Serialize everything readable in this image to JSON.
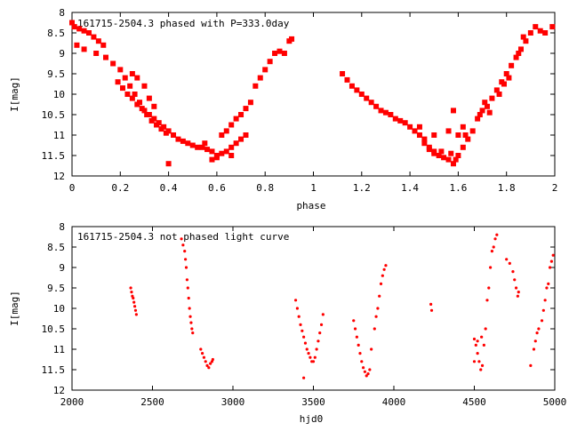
{
  "colors": {
    "points": "#ff0000",
    "axis": "#000000",
    "background": "#ffffff"
  },
  "chart_data": [
    {
      "type": "scatter",
      "title": "161715-2504.3 phased with P=333.0day",
      "xlabel": "phase",
      "ylabel": "I[mag]",
      "xlim": [
        0,
        2
      ],
      "ylim": [
        12,
        8
      ],
      "y_inverted": true,
      "grid": false,
      "legend": "none",
      "marker": "cross",
      "xticks": [
        "0",
        "0.2",
        "0.4",
        "0.6",
        "0.8",
        "1",
        "1.2",
        "1.4",
        "1.6",
        "1.8",
        "2"
      ],
      "yticks": [
        "8",
        "8.5",
        "9",
        "9.5",
        "10",
        "10.5",
        "11",
        "11.5",
        "12"
      ],
      "series": [
        {
          "values": [
            [
              0.0,
              8.25
            ],
            [
              0.01,
              8.35
            ],
            [
              0.03,
              8.4
            ],
            [
              0.05,
              8.45
            ],
            [
              0.07,
              8.5
            ],
            [
              0.09,
              8.6
            ],
            [
              0.11,
              8.7
            ],
            [
              0.13,
              8.8
            ],
            [
              0.02,
              8.8
            ],
            [
              0.05,
              8.9
            ],
            [
              0.1,
              9.0
            ],
            [
              0.14,
              9.1
            ],
            [
              0.17,
              9.25
            ],
            [
              0.2,
              9.4
            ],
            [
              0.22,
              9.6
            ],
            [
              0.24,
              9.8
            ],
            [
              0.26,
              10.0
            ],
            [
              0.28,
              10.2
            ],
            [
              0.3,
              10.4
            ],
            [
              0.32,
              10.5
            ],
            [
              0.34,
              10.6
            ],
            [
              0.36,
              10.7
            ],
            [
              0.38,
              10.8
            ],
            [
              0.4,
              10.9
            ],
            [
              0.42,
              11.0
            ],
            [
              0.44,
              11.1
            ],
            [
              0.46,
              11.15
            ],
            [
              0.19,
              9.7
            ],
            [
              0.21,
              9.85
            ],
            [
              0.23,
              10.0
            ],
            [
              0.25,
              10.1
            ],
            [
              0.27,
              10.25
            ],
            [
              0.29,
              10.35
            ],
            [
              0.31,
              10.5
            ],
            [
              0.33,
              10.65
            ],
            [
              0.35,
              10.75
            ],
            [
              0.37,
              10.85
            ],
            [
              0.39,
              10.95
            ],
            [
              0.25,
              9.5
            ],
            [
              0.27,
              9.6
            ],
            [
              0.3,
              9.8
            ],
            [
              0.32,
              10.1
            ],
            [
              0.34,
              10.3
            ],
            [
              0.48,
              11.2
            ],
            [
              0.5,
              11.25
            ],
            [
              0.52,
              11.3
            ],
            [
              0.54,
              11.3
            ],
            [
              0.56,
              11.35
            ],
            [
              0.58,
              11.4
            ],
            [
              0.6,
              11.5
            ],
            [
              0.62,
              11.45
            ],
            [
              0.64,
              11.4
            ],
            [
              0.66,
              11.3
            ],
            [
              0.68,
              11.2
            ],
            [
              0.7,
              11.1
            ],
            [
              0.72,
              11.0
            ],
            [
              0.58,
              11.6
            ],
            [
              0.6,
              11.55
            ],
            [
              0.55,
              11.2
            ],
            [
              0.62,
              11.0
            ],
            [
              0.66,
              11.5
            ],
            [
              0.64,
              10.9
            ],
            [
              0.66,
              10.75
            ],
            [
              0.68,
              10.6
            ],
            [
              0.7,
              10.5
            ],
            [
              0.72,
              10.35
            ],
            [
              0.74,
              10.2
            ],
            [
              0.76,
              9.8
            ],
            [
              0.78,
              9.6
            ],
            [
              0.8,
              9.4
            ],
            [
              0.82,
              9.2
            ],
            [
              0.84,
              9.0
            ],
            [
              0.86,
              8.95
            ],
            [
              0.88,
              9.0
            ],
            [
              0.9,
              8.7
            ],
            [
              0.91,
              8.65
            ],
            [
              0.4,
              11.7
            ],
            [
              1.12,
              9.5
            ],
            [
              1.14,
              9.65
            ],
            [
              1.16,
              9.8
            ],
            [
              1.18,
              9.9
            ],
            [
              1.2,
              10.0
            ],
            [
              1.22,
              10.1
            ],
            [
              1.24,
              10.2
            ],
            [
              1.26,
              10.3
            ],
            [
              1.28,
              10.4
            ],
            [
              1.3,
              10.45
            ],
            [
              1.32,
              10.5
            ],
            [
              1.34,
              10.6
            ],
            [
              1.36,
              10.65
            ],
            [
              1.38,
              10.7
            ],
            [
              1.4,
              10.8
            ],
            [
              1.42,
              10.9
            ],
            [
              1.44,
              11.0
            ],
            [
              1.46,
              11.1
            ],
            [
              1.48,
              11.3
            ],
            [
              1.5,
              11.45
            ],
            [
              1.52,
              11.5
            ],
            [
              1.54,
              11.55
            ],
            [
              1.56,
              11.6
            ],
            [
              1.58,
              11.7
            ],
            [
              1.6,
              11.5
            ],
            [
              1.62,
              11.3
            ],
            [
              1.64,
              11.1
            ],
            [
              1.46,
              11.2
            ],
            [
              1.48,
              11.35
            ],
            [
              1.5,
              11.4
            ],
            [
              1.53,
              11.4
            ],
            [
              1.57,
              11.45
            ],
            [
              1.59,
              11.6
            ],
            [
              1.44,
              10.8
            ],
            [
              1.5,
              11.0
            ],
            [
              1.58,
              10.4
            ],
            [
              1.6,
              11.0
            ],
            [
              1.56,
              10.9
            ],
            [
              1.62,
              10.8
            ],
            [
              1.66,
              10.9
            ],
            [
              1.68,
              10.6
            ],
            [
              1.7,
              10.4
            ],
            [
              1.72,
              10.3
            ],
            [
              1.74,
              10.1
            ],
            [
              1.76,
              9.9
            ],
            [
              1.78,
              9.7
            ],
            [
              1.8,
              9.5
            ],
            [
              1.82,
              9.3
            ],
            [
              1.84,
              9.1
            ],
            [
              1.86,
              8.9
            ],
            [
              1.88,
              8.7
            ],
            [
              1.9,
              8.5
            ],
            [
              1.92,
              8.35
            ],
            [
              1.94,
              8.45
            ],
            [
              1.96,
              8.5
            ],
            [
              1.99,
              8.35
            ],
            [
              1.69,
              10.5
            ],
            [
              1.71,
              10.2
            ],
            [
              1.73,
              10.45
            ],
            [
              1.63,
              11.0
            ],
            [
              1.77,
              10.0
            ],
            [
              1.79,
              9.75
            ],
            [
              1.81,
              9.6
            ],
            [
              1.85,
              9.0
            ],
            [
              1.87,
              8.6
            ]
          ]
        }
      ]
    },
    {
      "type": "scatter",
      "title": "161715-2504.3 not phased light curve",
      "xlabel": "hjd0",
      "ylabel": "I[mag]",
      "xlim": [
        2000,
        5000
      ],
      "ylim": [
        12,
        8
      ],
      "y_inverted": true,
      "grid": false,
      "legend": "none",
      "marker": "dot",
      "xticks": [
        "2000",
        "2500",
        "3000",
        "3500",
        "4000",
        "4500",
        "5000"
      ],
      "yticks": [
        "8",
        "8.5",
        "9",
        "9.5",
        "10",
        "10.5",
        "11",
        "11.5",
        "12"
      ],
      "series": [
        {
          "values": [
            [
              2365,
              9.5
            ],
            [
              2370,
              9.6
            ],
            [
              2375,
              9.7
            ],
            [
              2380,
              9.75
            ],
            [
              2385,
              9.85
            ],
            [
              2390,
              9.95
            ],
            [
              2395,
              10.05
            ],
            [
              2400,
              10.15
            ],
            [
              2680,
              8.3
            ],
            [
              2690,
              8.45
            ],
            [
              2700,
              8.6
            ],
            [
              2705,
              8.8
            ],
            [
              2710,
              9.0
            ],
            [
              2715,
              9.3
            ],
            [
              2720,
              9.5
            ],
            [
              2725,
              9.75
            ],
            [
              2730,
              10.0
            ],
            [
              2735,
              10.2
            ],
            [
              2740,
              10.35
            ],
            [
              2745,
              10.5
            ],
            [
              2750,
              10.6
            ],
            [
              2800,
              11.0
            ],
            [
              2810,
              11.1
            ],
            [
              2820,
              11.2
            ],
            [
              2830,
              11.3
            ],
            [
              2840,
              11.4
            ],
            [
              2850,
              11.45
            ],
            [
              2860,
              11.35
            ],
            [
              2870,
              11.3
            ],
            [
              2875,
              11.25
            ],
            [
              3390,
              9.8
            ],
            [
              3400,
              10.0
            ],
            [
              3410,
              10.2
            ],
            [
              3420,
              10.4
            ],
            [
              3430,
              10.55
            ],
            [
              3440,
              10.7
            ],
            [
              3450,
              10.85
            ],
            [
              3460,
              11.0
            ],
            [
              3470,
              11.1
            ],
            [
              3480,
              11.2
            ],
            [
              3490,
              11.3
            ],
            [
              3500,
              11.3
            ],
            [
              3510,
              11.2
            ],
            [
              3520,
              11.0
            ],
            [
              3530,
              10.8
            ],
            [
              3540,
              10.6
            ],
            [
              3550,
              10.4
            ],
            [
              3560,
              10.15
            ],
            [
              3440,
              11.7
            ],
            [
              3750,
              10.3
            ],
            [
              3760,
              10.5
            ],
            [
              3770,
              10.7
            ],
            [
              3780,
              10.9
            ],
            [
              3790,
              11.1
            ],
            [
              3800,
              11.3
            ],
            [
              3810,
              11.45
            ],
            [
              3820,
              11.55
            ],
            [
              3830,
              11.65
            ],
            [
              3840,
              11.6
            ],
            [
              3850,
              11.5
            ],
            [
              3860,
              11.0
            ],
            [
              3880,
              10.5
            ],
            [
              3890,
              10.2
            ],
            [
              3900,
              10.0
            ],
            [
              3910,
              9.7
            ],
            [
              3920,
              9.4
            ],
            [
              3930,
              9.2
            ],
            [
              3940,
              9.05
            ],
            [
              3950,
              8.95
            ],
            [
              4230,
              9.9
            ],
            [
              4235,
              10.05
            ],
            [
              4500,
              10.75
            ],
            [
              4510,
              10.9
            ],
            [
              4520,
              11.1
            ],
            [
              4530,
              11.3
            ],
            [
              4540,
              11.5
            ],
            [
              4550,
              11.4
            ],
            [
              4560,
              10.9
            ],
            [
              4570,
              10.5
            ],
            [
              4580,
              9.8
            ],
            [
              4590,
              9.5
            ],
            [
              4600,
              9.0
            ],
            [
              4610,
              8.6
            ],
            [
              4620,
              8.5
            ],
            [
              4630,
              8.3
            ],
            [
              4640,
              8.2
            ],
            [
              4500,
              11.3
            ],
            [
              4520,
              10.8
            ],
            [
              4545,
              10.7
            ],
            [
              4700,
              8.8
            ],
            [
              4720,
              8.9
            ],
            [
              4740,
              9.1
            ],
            [
              4750,
              9.3
            ],
            [
              4760,
              9.5
            ],
            [
              4770,
              9.7
            ],
            [
              4775,
              9.6
            ],
            [
              4850,
              11.4
            ],
            [
              4870,
              11.0
            ],
            [
              4880,
              10.8
            ],
            [
              4890,
              10.6
            ],
            [
              4900,
              10.5
            ],
            [
              4920,
              10.3
            ],
            [
              4930,
              10.05
            ],
            [
              4940,
              9.8
            ],
            [
              4950,
              9.5
            ],
            [
              4960,
              9.4
            ],
            [
              4970,
              9.0
            ],
            [
              4980,
              8.85
            ],
            [
              4990,
              8.7
            ]
          ]
        }
      ]
    }
  ]
}
